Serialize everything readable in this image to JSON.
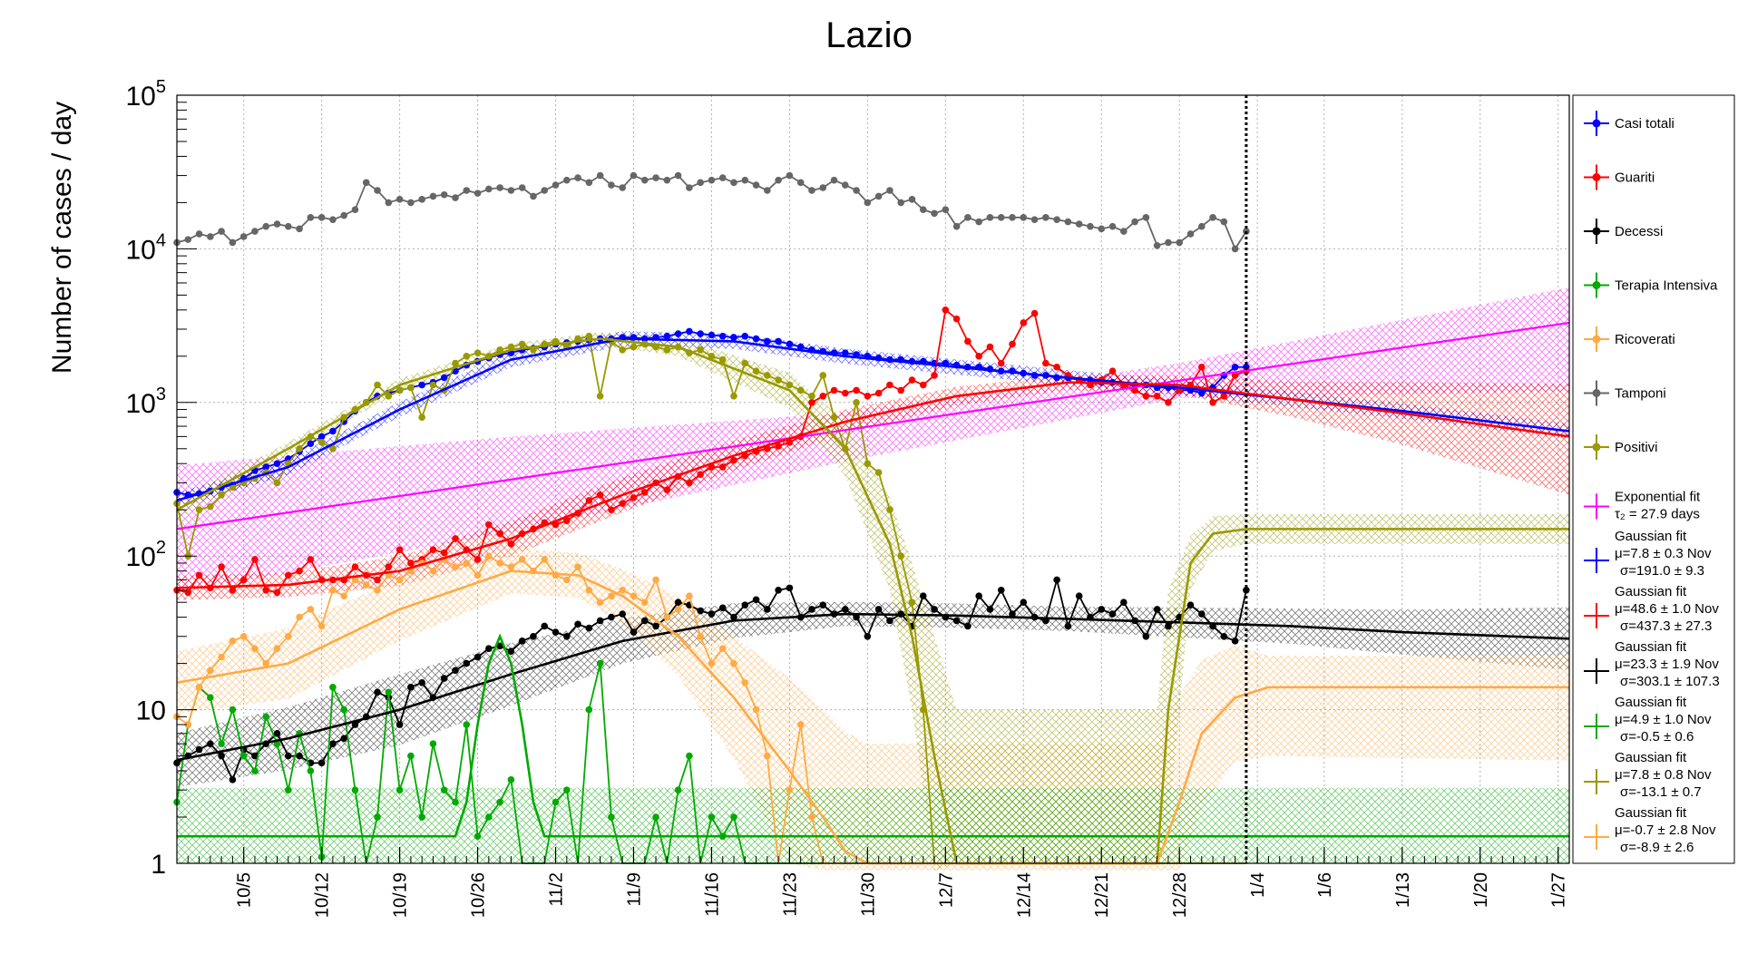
{
  "chart_data": {
    "type": "line",
    "title": "Lazio",
    "xlabel": "",
    "ylabel": "Number of cases / day",
    "y_scale": "log",
    "ylim": [
      1,
      100000
    ],
    "y_tick_labels": [
      {
        "value": 1,
        "base": "1",
        "exp": ""
      },
      {
        "value": 10,
        "base": "10",
        "exp": ""
      },
      {
        "value": 100,
        "base": "10",
        "exp": "2"
      },
      {
        "value": 1000,
        "base": "10",
        "exp": "3"
      },
      {
        "value": 10000,
        "base": "10",
        "exp": "4"
      },
      {
        "value": 100000,
        "base": "10",
        "exp": "5"
      }
    ],
    "x_start": "2020-09-29",
    "xlim_days": [
      0,
      125
    ],
    "x_tick_labels": [
      "10/5",
      "10/12",
      "10/19",
      "10/26",
      "11/2",
      "11/9",
      "11/16",
      "11/23",
      "11/30",
      "12/7",
      "12/14",
      "12/21",
      "12/28",
      "1/4",
      "1/6",
      "1/13",
      "1/20",
      "1/27"
    ],
    "x_tick_days": [
      6,
      13,
      20,
      27,
      34,
      41,
      48,
      55,
      62,
      69,
      76,
      83,
      90,
      97,
      103,
      110,
      117,
      124
    ],
    "grid": true,
    "legend_position": "right",
    "vline_day": 96,
    "series": [
      {
        "name": "Casi totali",
        "color": "#0000ff",
        "values": [
          260,
          250,
          255,
          265,
          280,
          290,
          320,
          360,
          380,
          400,
          430,
          480,
          540,
          600,
          650,
          750,
          880,
          1000,
          1100,
          1150,
          1200,
          1250,
          1300,
          1350,
          1450,
          1600,
          1750,
          1850,
          1950,
          2050,
          2100,
          2200,
          2250,
          2300,
          2400,
          2450,
          2500,
          2550,
          2600,
          2600,
          2650,
          2650,
          2600,
          2650,
          2700,
          2800,
          2900,
          2800,
          2750,
          2700,
          2650,
          2700,
          2600,
          2500,
          2500,
          2400,
          2300,
          2200,
          2150,
          2100,
          2100,
          2050,
          2000,
          1950,
          1900,
          1900,
          1850,
          1850,
          1800,
          1800,
          1750,
          1700,
          1700,
          1650,
          1600,
          1600,
          1550,
          1500,
          1500,
          1450,
          1450,
          1400,
          1400,
          1350,
          1350,
          1300,
          1300,
          1300,
          1250,
          1250,
          1200,
          1200,
          1150,
          1250,
          1500,
          1700,
          1700
        ]
      },
      {
        "name": "Guariti",
        "color": "#ff0000",
        "values": [
          60,
          58,
          75,
          62,
          85,
          60,
          70,
          95,
          60,
          58,
          75,
          80,
          95,
          70,
          70,
          70,
          85,
          75,
          70,
          85,
          110,
          90,
          95,
          110,
          105,
          130,
          110,
          95,
          160,
          140,
          120,
          140,
          150,
          165,
          160,
          170,
          190,
          230,
          250,
          200,
          220,
          240,
          260,
          300,
          270,
          330,
          300,
          340,
          380,
          380,
          420,
          450,
          480,
          500,
          520,
          550,
          600,
          1000,
          1100,
          1200,
          1150,
          1200,
          1100,
          1150,
          1300,
          1200,
          1400,
          1300,
          1500,
          4000,
          3500,
          2500,
          2000,
          2300,
          1800,
          2400,
          3300,
          3800,
          1800,
          1700,
          1500,
          1400,
          1300,
          1400,
          1600,
          1300,
          1200,
          1100,
          1100,
          1000,
          1200,
          1300,
          1700,
          1000,
          1100,
          1500,
          1600
        ]
      },
      {
        "name": "Decessi",
        "color": "#000000",
        "values": [
          4.5,
          5,
          5.5,
          6,
          5,
          3.5,
          5.5,
          5,
          6,
          7,
          5,
          5,
          4.5,
          4.5,
          6,
          6.5,
          8,
          9,
          13,
          12,
          8,
          14,
          15,
          12,
          16,
          18,
          20,
          22,
          25,
          26,
          24,
          28,
          30,
          35,
          32,
          30,
          36,
          34,
          38,
          40,
          42,
          32,
          38,
          35,
          40,
          50,
          48,
          44,
          42,
          46,
          40,
          48,
          52,
          45,
          60,
          62,
          40,
          45,
          48,
          42,
          45,
          40,
          30,
          45,
          38,
          42,
          35,
          55,
          45,
          40,
          38,
          35,
          55,
          45,
          60,
          42,
          50,
          40,
          38,
          70,
          35,
          55,
          40,
          45,
          42,
          50,
          38,
          30,
          45,
          35,
          40,
          48,
          42,
          35,
          30,
          28,
          60
        ]
      },
      {
        "name": "Terapia Intensiva",
        "color": "#00aa00",
        "values": [
          2.5,
          8,
          14,
          12,
          6,
          10,
          5,
          4,
          9,
          6,
          3,
          7,
          4,
          1.1,
          14,
          10,
          3,
          1,
          2,
          13,
          3,
          5,
          2,
          6,
          3,
          2.5,
          8,
          1.5,
          2,
          2.5,
          3.5,
          1,
          1,
          1,
          2.5,
          3,
          1,
          10,
          20,
          2,
          1,
          1,
          1,
          2,
          1,
          3,
          5,
          1,
          2,
          1.5,
          2,
          1,
          1,
          1,
          1,
          1,
          1,
          1,
          1,
          1,
          1,
          1,
          1,
          1,
          1,
          1,
          1,
          1,
          1,
          1,
          1,
          1,
          1,
          1,
          1,
          1,
          1,
          1,
          1,
          1,
          1,
          1,
          1,
          1,
          1,
          1,
          1,
          1,
          1,
          1,
          1,
          1,
          1,
          1,
          1,
          1,
          1
        ]
      },
      {
        "name": "Ricoverati",
        "color": "#ffaa44",
        "values": [
          9,
          8,
          14,
          18,
          22,
          28,
          30,
          25,
          20,
          25,
          30,
          40,
          45,
          35,
          60,
          55,
          70,
          65,
          60,
          75,
          70,
          80,
          90,
          80,
          95,
          85,
          90,
          75,
          100,
          90,
          85,
          95,
          80,
          95,
          75,
          70,
          85,
          60,
          50,
          55,
          60,
          55,
          50,
          70,
          40,
          45,
          55,
          30,
          20,
          25,
          20,
          15,
          10,
          5,
          1,
          3,
          8,
          2,
          1,
          1,
          1,
          1,
          1,
          1,
          1,
          1,
          1,
          1,
          1,
          1,
          1,
          1,
          1,
          1,
          1,
          1,
          1,
          1,
          1,
          1,
          1,
          1,
          1,
          1,
          1,
          1,
          1,
          1,
          1,
          1,
          1,
          1,
          1,
          1,
          1,
          1,
          1
        ]
      },
      {
        "name": "Tamponi",
        "color": "#666666",
        "values": [
          11000,
          11500,
          12500,
          12000,
          13000,
          11000,
          12000,
          13000,
          14000,
          14500,
          14000,
          13500,
          16000,
          16000,
          15500,
          16500,
          18000,
          27000,
          24000,
          20000,
          21000,
          20000,
          21000,
          22000,
          22500,
          21500,
          24000,
          23000,
          24500,
          25000,
          24000,
          25000,
          22000,
          24000,
          26000,
          28000,
          29000,
          27000,
          30000,
          26000,
          25000,
          30000,
          28000,
          29000,
          28000,
          30000,
          25000,
          27000,
          28000,
          29000,
          27000,
          28000,
          26000,
          24000,
          28000,
          30000,
          27000,
          24000,
          25000,
          28000,
          26000,
          24000,
          20000,
          22000,
          24000,
          20000,
          21000,
          18000,
          17000,
          18000,
          14000,
          16000,
          15000,
          16000,
          16000,
          16000,
          16000,
          15500,
          16000,
          15500,
          15000,
          14500,
          14000,
          13500,
          14000,
          13000,
          15000,
          16000,
          10500,
          11000,
          11000,
          12500,
          14000,
          16000,
          15000,
          10000,
          13000
        ]
      },
      {
        "name": "Positivi",
        "color": "#999900",
        "values": [
          220,
          100,
          200,
          210,
          250,
          280,
          300,
          320,
          350,
          300,
          400,
          500,
          600,
          550,
          500,
          800,
          900,
          1000,
          1300,
          1100,
          1200,
          1250,
          800,
          1300,
          1200,
          1800,
          2000,
          2100,
          2000,
          2200,
          2300,
          2400,
          2200,
          2400,
          2500,
          2300,
          2600,
          2700,
          1100,
          2500,
          2200,
          2300,
          2400,
          2300,
          2200,
          2300,
          2100,
          2200,
          2000,
          1900,
          1100,
          1800,
          1600,
          1500,
          1400,
          1300,
          1200,
          1100,
          1500,
          800,
          500,
          1000,
          400,
          350,
          200,
          100,
          50,
          10,
          1,
          1,
          1,
          1,
          1,
          1,
          1,
          1,
          1,
          1,
          1,
          1,
          1,
          1,
          1,
          1,
          1,
          1,
          1,
          1,
          1,
          1,
          1,
          1,
          1,
          1,
          1,
          1,
          1
        ]
      }
    ],
    "fits": [
      {
        "name": "Exponential fit",
        "tau_label": "τ₂ = 27.9 days",
        "color": "#ff00ff",
        "model": "exp",
        "y_start": 150,
        "y_end": 3300
      },
      {
        "name": "Gaussian fit",
        "line1": "μ=7.8 ± 0.3 Nov",
        "line2": "σ=191.0 ± 9.3",
        "color": "#0000ff"
      },
      {
        "name": "Gaussian fit",
        "line1": "μ=48.6 ± 1.0 Nov",
        "line2": "σ=437.3 ± 27.3",
        "color": "#ff0000"
      },
      {
        "name": "Gaussian fit",
        "line1": "μ=23.3 ± 1.9 Nov",
        "line2": "σ=303.1 ± 107.3",
        "color": "#000000"
      },
      {
        "name": "Gaussian fit",
        "line1": "μ=4.9 ± 1.0 Nov",
        "line2": "σ=-0.5 ± 0.6",
        "color": "#00aa00"
      },
      {
        "name": "Gaussian fit",
        "line1": "μ=7.8 ± 0.8 Nov",
        "line2": "σ=-13.1 ± 0.7",
        "color": "#999900"
      },
      {
        "name": "Gaussian fit",
        "line1": "μ=-0.7 ± 2.8 Nov",
        "line2": "σ=-8.9 ± 2.6",
        "color": "#ffaa44"
      }
    ],
    "fit_curves": {
      "blue": {
        "x": [
          0,
          10,
          20,
          30,
          40,
          50,
          60,
          70,
          80,
          90,
          100,
          110,
          125
        ],
        "y": [
          230,
          380,
          900,
          1900,
          2600,
          2500,
          2000,
          1700,
          1450,
          1250,
          1050,
          880,
          650
        ]
      },
      "red": {
        "x": [
          0,
          10,
          20,
          30,
          40,
          50,
          60,
          70,
          80,
          90,
          100,
          110,
          125
        ],
        "y": [
          62,
          65,
          80,
          130,
          250,
          450,
          750,
          1100,
          1350,
          1300,
          1050,
          850,
          600
        ]
      },
      "black": {
        "x": [
          0,
          10,
          20,
          30,
          40,
          50,
          60,
          70,
          80,
          90,
          100,
          110,
          125
        ],
        "y": [
          4.7,
          6.5,
          10,
          17,
          28,
          38,
          42,
          41,
          39,
          37,
          35,
          32,
          29
        ]
      },
      "green": {
        "x": [
          0,
          25,
          26,
          27,
          28,
          29,
          30,
          31,
          32,
          33,
          125
        ],
        "y": [
          1.5,
          1.5,
          2.5,
          8,
          20,
          30,
          20,
          8,
          2.5,
          1.5,
          1.5
        ]
      },
      "olive": {
        "x": [
          0,
          10,
          20,
          30,
          38,
          45,
          55,
          60,
          64,
          66,
          68,
          70,
          88,
          89,
          91,
          93,
          96,
          125
        ],
        "y": [
          200,
          500,
          1300,
          2200,
          2600,
          2300,
          1200,
          500,
          120,
          30,
          5,
          1,
          1,
          10,
          90,
          140,
          150,
          150
        ]
      },
      "orange": {
        "x": [
          0,
          10,
          20,
          30,
          36,
          40,
          45,
          50,
          55,
          58,
          60,
          62,
          88,
          90,
          92,
          95,
          98,
          125
        ],
        "y": [
          15,
          20,
          45,
          80,
          75,
          55,
          30,
          12,
          4,
          2,
          1.2,
          1,
          1,
          2.5,
          7,
          12,
          14,
          14
        ]
      }
    }
  }
}
